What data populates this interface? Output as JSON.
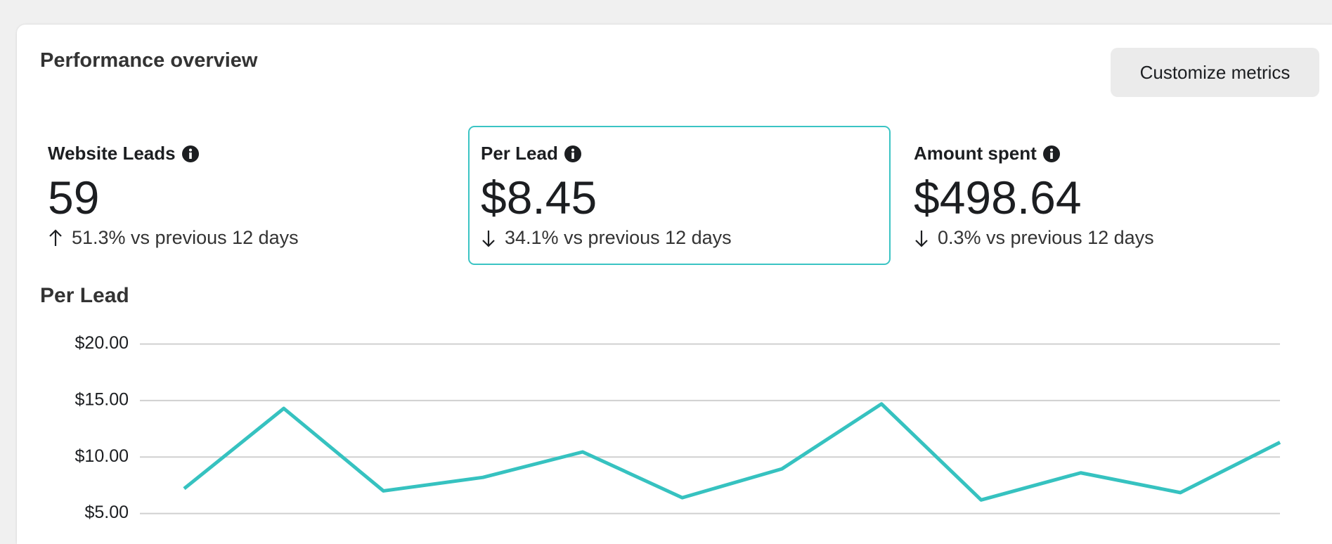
{
  "header": {
    "title": "Performance overview",
    "button": "Customize metrics"
  },
  "metrics": {
    "selected": 1,
    "items": [
      {
        "label": "Website Leads",
        "value": "59",
        "direction": "up",
        "change": "51.3% vs previous 12 days"
      },
      {
        "label": "Per Lead",
        "value": "$8.45",
        "direction": "down",
        "change": "34.1% vs previous 12 days"
      },
      {
        "label": "Amount spent",
        "value": "$498.64",
        "direction": "down",
        "change": "0.3% vs previous 12 days"
      }
    ]
  },
  "chart_data": {
    "type": "line",
    "title": "Per Lead",
    "categories": [
      null,
      null,
      null,
      null,
      null,
      null,
      null,
      null,
      null,
      null,
      null,
      null
    ],
    "values": [
      7.2,
      14.3,
      7.0,
      8.2,
      10.45,
      6.4,
      8.95,
      14.7,
      6.2,
      8.6,
      6.85,
      11.3
    ],
    "color": "#36c2c0",
    "ylim": [
      2.3,
      20
    ],
    "yticks": [
      {
        "value": 5,
        "label": "$5.00"
      },
      {
        "value": 10,
        "label": "$10.00"
      },
      {
        "value": 15,
        "label": "$15.00"
      },
      {
        "value": 20,
        "label": "$20.00"
      }
    ],
    "grid": true
  }
}
